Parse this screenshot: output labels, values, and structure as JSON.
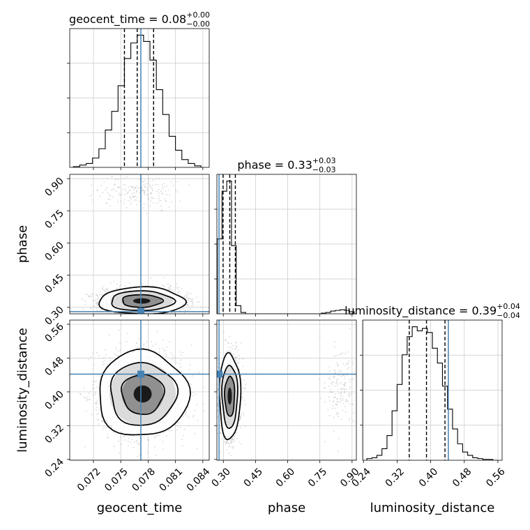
{
  "chart_data": {
    "type": "corner",
    "params": [
      "geocent_time",
      "phase",
      "luminosity_distance"
    ],
    "truths": {
      "geocent_time": 0.0772,
      "phase": 0.28,
      "luminosity_distance": 0.442
    },
    "axes": [
      {
        "param": "geocent_time",
        "lim": [
          0.0694,
          0.0847
        ],
        "ticks": [
          0.072,
          0.075,
          0.078,
          0.081,
          0.084
        ],
        "tick_labels": [
          "0.072",
          "0.075",
          "0.078",
          "0.081",
          "0.084"
        ]
      },
      {
        "param": "phase",
        "lim": [
          0.27,
          0.92
        ],
        "ticks": [
          0.3,
          0.45,
          0.6,
          0.75,
          0.9
        ],
        "tick_labels": [
          "0.30",
          "0.45",
          "0.60",
          "0.75",
          "0.90"
        ]
      },
      {
        "param": "luminosity_distance",
        "lim": [
          0.238,
          0.57
        ],
        "ticks": [
          0.24,
          0.32,
          0.4,
          0.48,
          0.56
        ],
        "tick_labels": [
          "0.24",
          "0.32",
          "0.40",
          "0.48",
          "0.56"
        ]
      }
    ],
    "diagonal": [
      {
        "param": "geocent_time",
        "title": {
          "base": "geocent_time = 0.08",
          "sup": "+0.00",
          "sub": "−0.00"
        },
        "quantile_lines": [
          0.0754,
          0.0768,
          0.0786
        ],
        "bins": [
          0.0698,
          0.0705,
          0.0712,
          0.0719,
          0.0726,
          0.0733,
          0.074,
          0.0747,
          0.0754,
          0.0761,
          0.0768,
          0.0775,
          0.0782,
          0.0789,
          0.0796,
          0.0803,
          0.081,
          0.0817,
          0.0824,
          0.0831,
          0.0838
        ],
        "counts": [
          1,
          3,
          5,
          12,
          24,
          48,
          72,
          105,
          140,
          160,
          170,
          162,
          138,
          100,
          68,
          40,
          22,
          10,
          5,
          2
        ]
      },
      {
        "param": "phase",
        "title": {
          "base": "phase = 0.33",
          "sup": "+0.03",
          "sub": "−0.03"
        },
        "quantile_lines": [
          0.299,
          0.33,
          0.356
        ],
        "bins": [
          0.272,
          0.294,
          0.316,
          0.338,
          0.36,
          0.382,
          0.404,
          0.426,
          0.448,
          0.47,
          0.492,
          0.514,
          0.536,
          0.558,
          0.58,
          0.602,
          0.624,
          0.646,
          0.668,
          0.69,
          0.712,
          0.734,
          0.756,
          0.778,
          0.8,
          0.822,
          0.844,
          0.866,
          0.888,
          0.91
        ],
        "counts": [
          110,
          180,
          195,
          100,
          12,
          2,
          0,
          0,
          0,
          0,
          0,
          0,
          0,
          0,
          0,
          0,
          0,
          0,
          0,
          0,
          0,
          0,
          1,
          2,
          4,
          5,
          6,
          5,
          3
        ]
      },
      {
        "param": "luminosity_distance",
        "title": {
          "base": "luminosity_distance = 0.39",
          "sup": "+0.04",
          "sub": "−0.04"
        },
        "quantile_lines": [
          0.349,
          0.39,
          0.434
        ],
        "bins": [
          0.248,
          0.26,
          0.272,
          0.284,
          0.296,
          0.308,
          0.32,
          0.332,
          0.344,
          0.356,
          0.368,
          0.38,
          0.392,
          0.404,
          0.416,
          0.428,
          0.44,
          0.452,
          0.464,
          0.476,
          0.488,
          0.5,
          0.512,
          0.524,
          0.536,
          0.548,
          0.56
        ],
        "counts": [
          2,
          3,
          6,
          14,
          30,
          60,
          92,
          128,
          150,
          162,
          157,
          160,
          155,
          136,
          118,
          90,
          62,
          38,
          20,
          10,
          6,
          3,
          2,
          1,
          1,
          0
        ]
      }
    ],
    "panels_2d": [
      {
        "x": "geocent_time",
        "y": "phase",
        "modes": [
          {
            "center": [
              0.0773,
              0.33
            ],
            "sigma": [
              0.0021,
              0.028
            ],
            "weight": 0.93
          },
          {
            "center": [
              0.0772,
              0.835
            ],
            "sigma": [
              0.0022,
              0.035
            ],
            "weight": 0.07
          }
        ],
        "contour_levels": [
          0.12,
          0.35,
          0.62
        ]
      },
      {
        "x": "geocent_time",
        "y": "luminosity_distance",
        "modes": [
          {
            "center": [
              0.0774,
              0.395
            ],
            "sigma": [
              0.0022,
              0.045
            ],
            "weight": 1.0
          }
        ],
        "contour_levels": [
          0.12,
          0.35,
          0.62
        ]
      },
      {
        "x": "phase",
        "y": "luminosity_distance",
        "modes": [
          {
            "center": [
              0.33,
              0.39
            ],
            "sigma": [
              0.022,
              0.045
            ],
            "weight": 0.94
          },
          {
            "center": [
              0.84,
              0.41
            ],
            "sigma": [
              0.035,
              0.05
            ],
            "weight": 0.06
          }
        ],
        "contour_levels": [
          0.12,
          0.35,
          0.62
        ]
      }
    ]
  },
  "colors": {
    "truth": "#4682b4",
    "hist": "#000000",
    "grid": "#c8c8c8",
    "points": "#a9a9a9"
  }
}
